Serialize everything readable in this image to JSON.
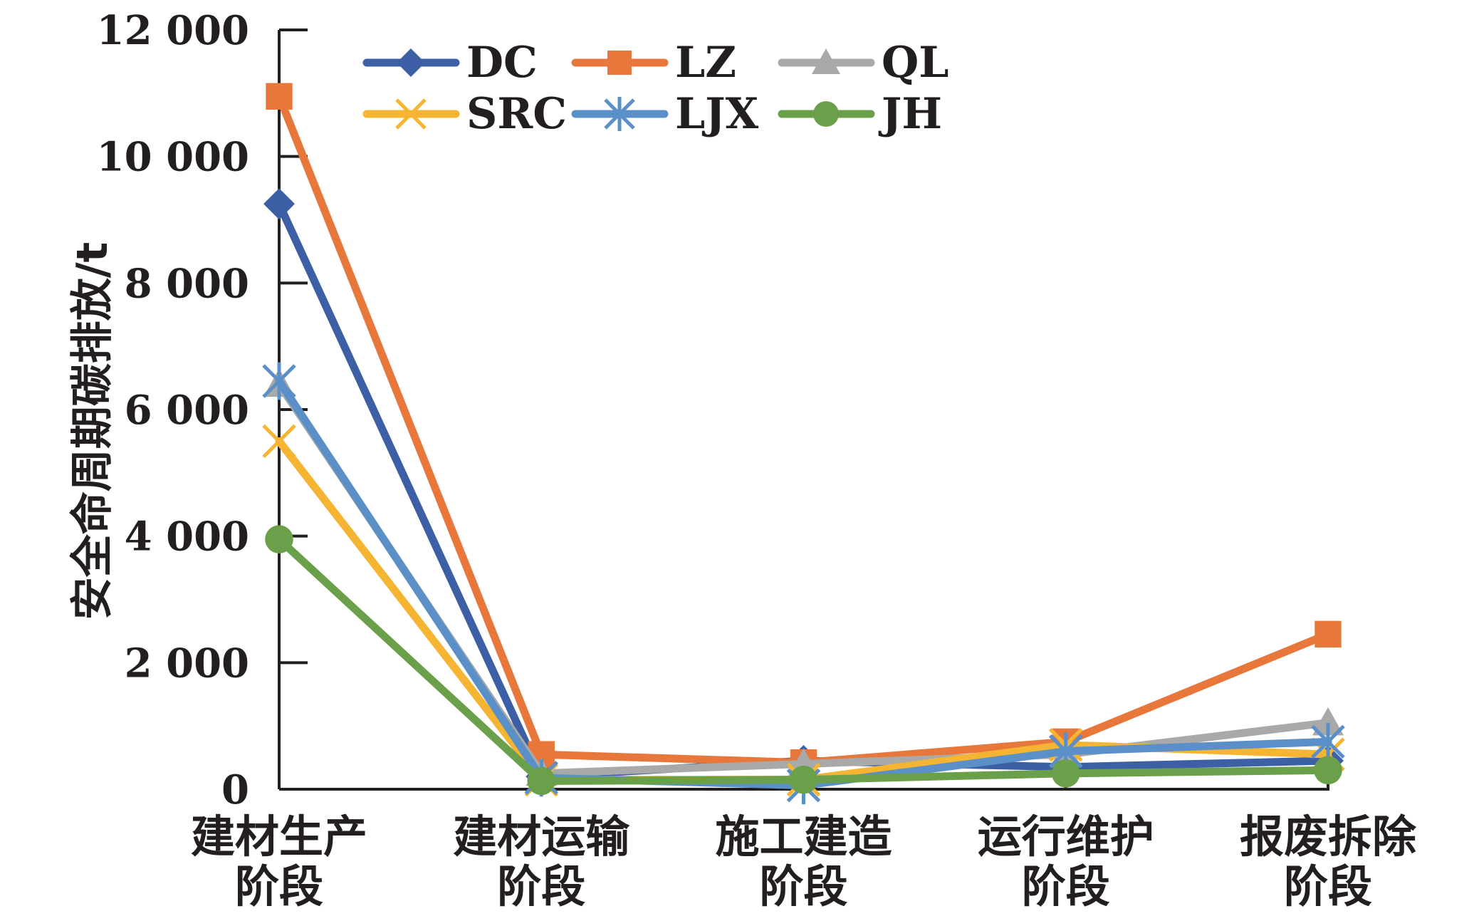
{
  "chart_data": {
    "type": "line",
    "title": "",
    "xlabel": "",
    "ylabel": "安全命周期碳排放/t",
    "ylim": [
      0,
      12000
    ],
    "yticks": [
      0,
      2000,
      4000,
      6000,
      8000,
      10000,
      12000
    ],
    "ytick_labels": [
      "0",
      "2 000",
      "4 000",
      "6 000",
      "8 000",
      "10 000",
      "12 000"
    ],
    "categories": [
      [
        "建材生产",
        "阶段"
      ],
      [
        "建材运输",
        "阶段"
      ],
      [
        "施工建造",
        "阶段"
      ],
      [
        "运行维护",
        "阶段"
      ],
      [
        "报废拆除",
        "阶段"
      ]
    ],
    "grid": false,
    "legend_position": "top",
    "series": [
      {
        "name": "DC",
        "color": "#3c5fa5",
        "marker": "diamond",
        "values": [
          9250,
          200,
          450,
          350,
          450
        ]
      },
      {
        "name": "LZ",
        "color": "#e8773b",
        "marker": "square",
        "values": [
          10950,
          550,
          420,
          750,
          2450
        ]
      },
      {
        "name": "QL",
        "color": "#a9a9a9",
        "marker": "triangle",
        "values": [
          6400,
          250,
          400,
          550,
          1050
        ]
      },
      {
        "name": "SRC",
        "color": "#f5b533",
        "marker": "x",
        "values": [
          5500,
          150,
          150,
          700,
          550
        ]
      },
      {
        "name": "LJX",
        "color": "#5b8fc8",
        "marker": "asterisk",
        "values": [
          6450,
          180,
          60,
          600,
          750
        ]
      },
      {
        "name": "JH",
        "color": "#6ba04a",
        "marker": "circle",
        "values": [
          3950,
          130,
          150,
          250,
          300
        ]
      }
    ]
  }
}
